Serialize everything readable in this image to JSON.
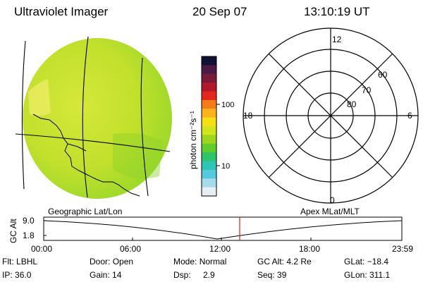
{
  "header": {
    "instrument": "Ultraviolet Imager",
    "date": "20 Sep 07",
    "time": "13:10:19 UT"
  },
  "colorbar": {
    "unit_label": "photon cm⁻²s⁻¹",
    "ticks": [
      "100",
      "10"
    ],
    "colors": [
      "#111133",
      "#4a1a44",
      "#7a1a3a",
      "#b2162a",
      "#e4261e",
      "#f47a1a",
      "#fbb31a",
      "#f5e014",
      "#cfe61a",
      "#9ed61e",
      "#62cc2a",
      "#2ec46a",
      "#2ec4b6",
      "#54c8e0",
      "#a6dcea",
      "#e9eef3"
    ]
  },
  "geo_map": {
    "disk_color": "#c0e22a"
  },
  "polar_plot": {
    "mlt_labels": {
      "top": "12",
      "left": "18",
      "right": "6",
      "bottom": "0"
    },
    "lat_labels": [
      "60",
      "70",
      "80"
    ]
  },
  "orbit_plot": {
    "left_title": "Geographic Lat/Lon",
    "right_title": "Apex MLat/MLT",
    "y_label": "GC Alt",
    "y_ticks": [
      "9.0",
      "1.8"
    ],
    "x_ticks": [
      "00:00",
      "06:00",
      "12:00",
      "18:00",
      "23:59"
    ],
    "marker_color": "#dd2222"
  },
  "status": {
    "flt_label": "Flt:",
    "flt_value": "LBHL",
    "ip_label": "IP:",
    "ip_value": "36.0",
    "door_label": "Door:",
    "door_value": "Open",
    "gain_label": "Gain:",
    "gain_value": "14",
    "mode_label": "Mode:",
    "mode_value": "Normal",
    "dsp_label": "Dsp:",
    "dsp_value": "2.9",
    "gcalt_label": "GC Alt:",
    "gcalt_value": "4.2 Re",
    "seq_label": "Seq:",
    "seq_value": "39",
    "glat_label": "GLat:",
    "glat_value": "−18.4",
    "glon_label": "GLon:",
    "glon_value": "311.1"
  }
}
